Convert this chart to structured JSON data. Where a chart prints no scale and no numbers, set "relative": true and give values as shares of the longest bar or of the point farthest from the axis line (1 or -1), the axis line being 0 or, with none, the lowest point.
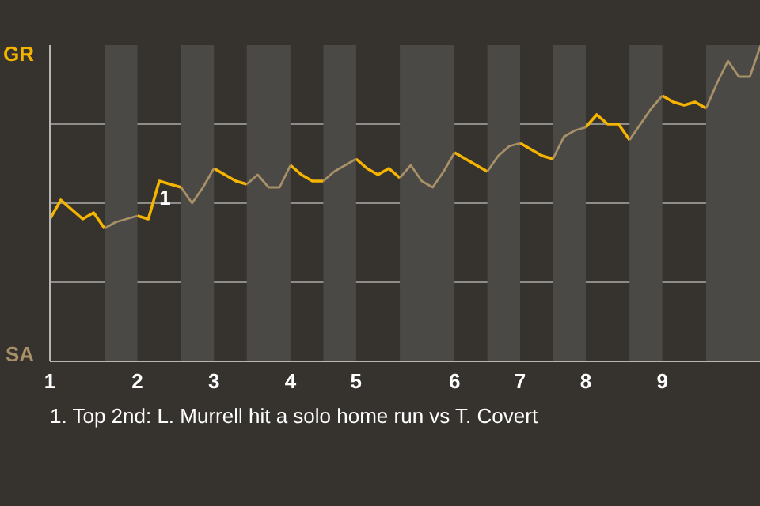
{
  "chart_data": {
    "type": "line",
    "relative": true,
    "categories": [
      "1",
      null,
      null,
      null,
      null,
      null,
      null,
      null,
      "2",
      null,
      null,
      null,
      null,
      null,
      null,
      "3",
      null,
      null,
      null,
      null,
      null,
      null,
      "4",
      null,
      null,
      null,
      null,
      null,
      "5",
      null,
      null,
      null,
      null,
      null,
      null,
      null,
      null,
      "6",
      null,
      null,
      null,
      null,
      null,
      "7",
      null,
      null,
      null,
      null,
      null,
      "8",
      null,
      null,
      null,
      null,
      null,
      null,
      "9",
      null,
      null,
      null,
      null,
      null,
      null,
      null,
      null,
      null
    ],
    "series": [
      {
        "name": "GR",
        "color": "#f5b400",
        "values": [
          0.45,
          0.51,
          0.48,
          0.45,
          0.47,
          0.42,
          null,
          null,
          0.46,
          0.45,
          0.57,
          0.56,
          0.55,
          null,
          null,
          0.61,
          0.59,
          0.57,
          0.56,
          null,
          null,
          null,
          0.62,
          0.59,
          0.57,
          0.57,
          null,
          null,
          0.64,
          0.61,
          0.59,
          0.61,
          0.58,
          null,
          null,
          null,
          null,
          0.66,
          0.64,
          0.62,
          0.6,
          null,
          null,
          0.69,
          0.67,
          0.65,
          0.64,
          null,
          null,
          0.74,
          0.78,
          0.75,
          0.75,
          0.7,
          null,
          null,
          0.84,
          0.82,
          0.81,
          0.82,
          0.8,
          null,
          null,
          null,
          null,
          null
        ]
      },
      {
        "name": "SA",
        "color": "#a89068",
        "values": [
          null,
          null,
          null,
          null,
          null,
          0.42,
          0.44,
          0.45,
          0.46,
          null,
          null,
          null,
          0.55,
          0.5,
          0.55,
          0.61,
          null,
          null,
          0.56,
          0.59,
          0.55,
          0.55,
          0.62,
          null,
          null,
          0.57,
          0.6,
          0.62,
          0.64,
          null,
          null,
          null,
          0.58,
          0.62,
          0.57,
          0.55,
          0.6,
          0.66,
          null,
          null,
          0.6,
          0.65,
          0.68,
          0.69,
          null,
          null,
          0.64,
          0.71,
          0.73,
          0.74,
          null,
          null,
          null,
          0.7,
          0.75,
          0.8,
          0.84,
          null,
          null,
          null,
          0.8,
          0.88,
          0.95,
          0.9,
          0.9,
          1
        ]
      }
    ],
    "grid": "y",
    "annotations": [
      {
        "text": "1",
        "y": 0.57
      },
      "1. Top 2nd: L. Murrell hit a solo home run vs T. Covert"
    ]
  }
}
